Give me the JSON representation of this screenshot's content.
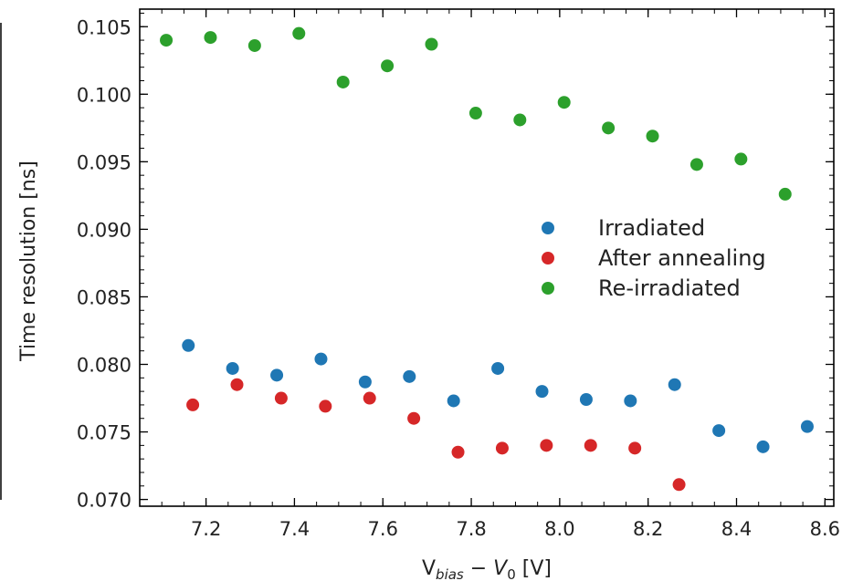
{
  "chart_data": {
    "type": "scatter",
    "title": "",
    "xlabel": {
      "main": "V",
      "sub": "bias",
      "mid": " − ",
      "var": "V",
      "var_sub": "0",
      "unit": " [V]"
    },
    "ylabel": "Time resolution [ns]",
    "xlim": [
      7.05,
      8.62
    ],
    "ylim": [
      0.0695,
      0.1063
    ],
    "x_ticks": [
      7.2,
      7.4,
      7.6,
      7.8,
      8.0,
      8.2,
      8.4,
      8.6
    ],
    "x_tick_labels": [
      "7.2",
      "7.4",
      "7.6",
      "7.8",
      "8.0",
      "8.2",
      "8.4",
      "8.6"
    ],
    "y_ticks": [
      0.07,
      0.075,
      0.08,
      0.085,
      0.09,
      0.095,
      0.1,
      0.105
    ],
    "y_tick_labels": [
      "0.070",
      "0.075",
      "0.080",
      "0.085",
      "0.090",
      "0.095",
      "0.100",
      "0.105"
    ],
    "grid": false,
    "legend_position": "center-right",
    "series": [
      {
        "name": "Irradiated",
        "color": "#1f77b4",
        "points": [
          [
            7.16,
            0.0814
          ],
          [
            7.26,
            0.0797
          ],
          [
            7.36,
            0.0792
          ],
          [
            7.46,
            0.0804
          ],
          [
            7.56,
            0.0787
          ],
          [
            7.66,
            0.0791
          ],
          [
            7.76,
            0.0773
          ],
          [
            7.86,
            0.0797
          ],
          [
            7.96,
            0.078
          ],
          [
            8.06,
            0.0774
          ],
          [
            8.16,
            0.0773
          ],
          [
            8.26,
            0.0785
          ],
          [
            8.36,
            0.0751
          ],
          [
            8.46,
            0.0739
          ],
          [
            8.56,
            0.0754
          ]
        ]
      },
      {
        "name": "After annealing",
        "color": "#d62728",
        "points": [
          [
            7.17,
            0.077
          ],
          [
            7.27,
            0.0785
          ],
          [
            7.37,
            0.0775
          ],
          [
            7.47,
            0.0769
          ],
          [
            7.57,
            0.0775
          ],
          [
            7.67,
            0.076
          ],
          [
            7.77,
            0.0735
          ],
          [
            7.87,
            0.0738
          ],
          [
            7.97,
            0.074
          ],
          [
            8.07,
            0.074
          ],
          [
            8.17,
            0.0738
          ],
          [
            8.27,
            0.0711
          ]
        ]
      },
      {
        "name": "Re-irradiated",
        "color": "#2ca02c",
        "points": [
          [
            7.11,
            0.104
          ],
          [
            7.21,
            0.1042
          ],
          [
            7.31,
            0.1036
          ],
          [
            7.41,
            0.1045
          ],
          [
            7.51,
            0.1009
          ],
          [
            7.61,
            0.1021
          ],
          [
            7.71,
            0.1037
          ],
          [
            7.81,
            0.0986
          ],
          [
            7.91,
            0.0981
          ],
          [
            8.01,
            0.0994
          ],
          [
            8.11,
            0.0975
          ],
          [
            8.21,
            0.0969
          ],
          [
            8.31,
            0.0948
          ],
          [
            8.41,
            0.0952
          ],
          [
            8.51,
            0.0926
          ]
        ]
      }
    ]
  }
}
